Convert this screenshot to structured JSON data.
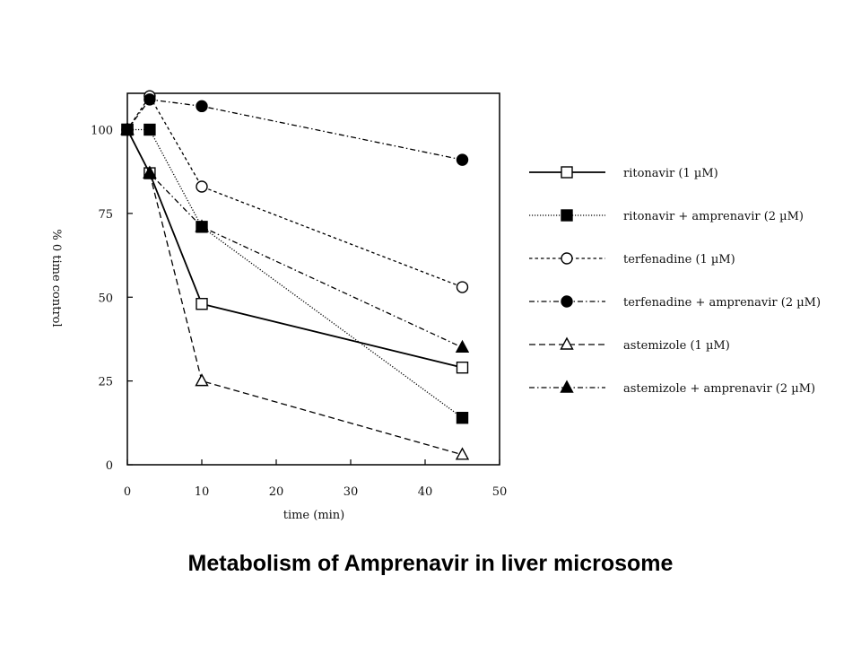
{
  "caption": "Metabolism of Amprenavir in liver microsome",
  "chart_data": {
    "type": "line",
    "title": "",
    "xlabel": "time (min)",
    "ylabel": "% 0 time control",
    "xlim": [
      0,
      50
    ],
    "ylim": [
      0,
      110
    ],
    "xticks": [
      0,
      10,
      20,
      30,
      40,
      50
    ],
    "yticks": [
      0,
      25,
      50,
      75,
      100
    ],
    "grid": false,
    "legend_position": "right",
    "series": [
      {
        "name": "ritonavir (1 µM)",
        "marker": "square-open",
        "dash": "solid",
        "points": [
          [
            0,
            100
          ],
          [
            3,
            87
          ],
          [
            10,
            48
          ],
          [
            45,
            29
          ]
        ]
      },
      {
        "name": "ritonavir + amprenavir (2 µM)",
        "marker": "square-filled",
        "dash": "dotted",
        "points": [
          [
            0,
            100
          ],
          [
            3,
            100
          ],
          [
            10,
            71
          ],
          [
            45,
            14
          ]
        ]
      },
      {
        "name": "terfenadine (1 µM)",
        "marker": "circle-open",
        "dash": "short-dash",
        "points": [
          [
            0,
            100
          ],
          [
            3,
            110
          ],
          [
            10,
            83
          ],
          [
            45,
            53
          ]
        ]
      },
      {
        "name": "terfenadine + amprenavir (2 µM)",
        "marker": "circle-filled",
        "dash": "dash-dot",
        "points": [
          [
            0,
            100
          ],
          [
            3,
            109
          ],
          [
            10,
            107
          ],
          [
            45,
            91
          ]
        ]
      },
      {
        "name": "astemizole (1 µM)",
        "marker": "triangle-open",
        "dash": "long-dash",
        "points": [
          [
            0,
            100
          ],
          [
            3,
            87
          ],
          [
            10,
            25
          ],
          [
            45,
            3
          ]
        ]
      },
      {
        "name": "astemizole +  amprenavir (2 µM)",
        "marker": "triangle-filled",
        "dash": "dash-dot",
        "points": [
          [
            0,
            100
          ],
          [
            3,
            87
          ],
          [
            10,
            71
          ],
          [
            45,
            35
          ]
        ]
      }
    ]
  }
}
